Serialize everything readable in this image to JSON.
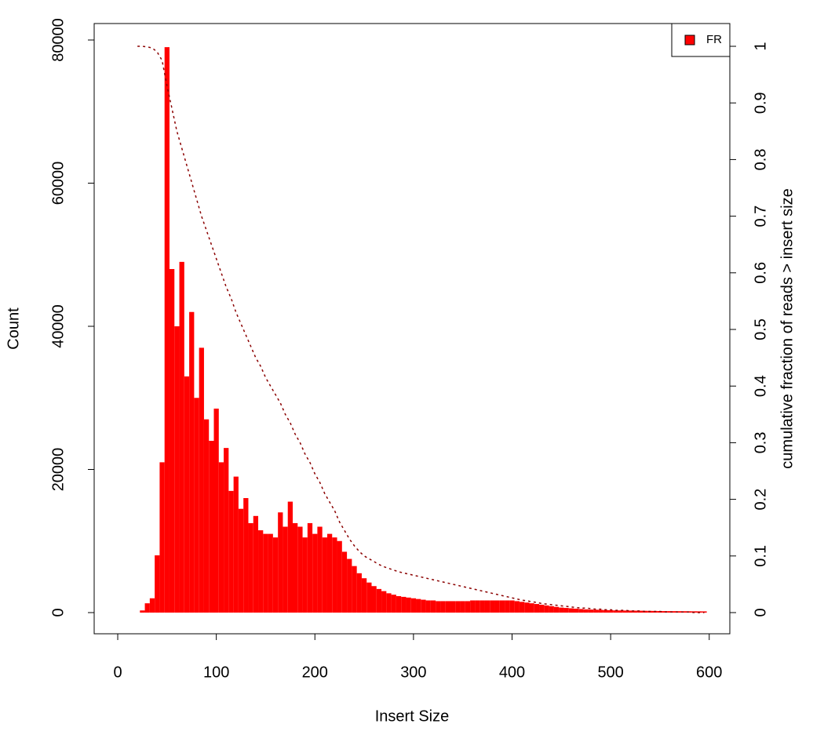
{
  "chart_data": {
    "type": "bar",
    "xlabel": "Insert Size",
    "ylabel": "Count",
    "y2label": "cumulative fraction of reads > insert size",
    "x": [
      20,
      25,
      30,
      35,
      40,
      45,
      50,
      55,
      60,
      65,
      70,
      75,
      80,
      85,
      90,
      95,
      100,
      105,
      110,
      115,
      120,
      125,
      130,
      135,
      140,
      145,
      150,
      155,
      160,
      165,
      170,
      175,
      180,
      185,
      190,
      195,
      200,
      205,
      210,
      215,
      220,
      225,
      230,
      235,
      240,
      245,
      250,
      255,
      260,
      265,
      270,
      275,
      280,
      285,
      290,
      295,
      300,
      305,
      310,
      315,
      320,
      325,
      330,
      335,
      340,
      345,
      350,
      355,
      360,
      365,
      370,
      375,
      380,
      385,
      390,
      395,
      400,
      405,
      410,
      415,
      420,
      425,
      430,
      435,
      440,
      445,
      450,
      455,
      460,
      465,
      470,
      475,
      480,
      485,
      490,
      495,
      500,
      505,
      510,
      515,
      520,
      525,
      530,
      535,
      540,
      545,
      550,
      555,
      560,
      565,
      570,
      575,
      580,
      585,
      590,
      595
    ],
    "series": [
      {
        "name": "FR",
        "color": "#ff0000",
        "values": [
          0,
          300,
          1300,
          2000,
          8000,
          21000,
          79000,
          48000,
          40000,
          49000,
          33000,
          42000,
          30000,
          37000,
          27000,
          24000,
          28500,
          21000,
          23000,
          17000,
          19000,
          14500,
          16000,
          12500,
          13500,
          11500,
          11000,
          11000,
          10500,
          14000,
          12000,
          15500,
          12500,
          12000,
          10500,
          12500,
          11000,
          12000,
          10500,
          11000,
          10500,
          10000,
          8500,
          7500,
          6500,
          5500,
          4800,
          4200,
          3700,
          3300,
          3000,
          2700,
          2500,
          2300,
          2200,
          2100,
          2000,
          1900,
          1800,
          1700,
          1700,
          1600,
          1600,
          1600,
          1600,
          1600,
          1600,
          1600,
          1700,
          1700,
          1700,
          1700,
          1700,
          1700,
          1700,
          1700,
          1700,
          1600,
          1500,
          1400,
          1300,
          1200,
          1100,
          1000,
          900,
          800,
          700,
          650,
          600,
          550,
          500,
          450,
          420,
          400,
          380,
          350,
          330,
          310,
          300,
          290,
          280,
          270,
          260,
          250,
          240,
          230,
          220,
          210,
          205,
          200,
          195,
          190,
          185,
          180,
          175,
          170
        ]
      }
    ],
    "cumulative": {
      "type": "line",
      "axis": "y2",
      "color": "#8b0000",
      "values": [
        1,
        1,
        0.999,
        0.997,
        0.99,
        0.975,
        0.93,
        0.89,
        0.85,
        0.82,
        0.79,
        0.76,
        0.73,
        0.7,
        0.675,
        0.65,
        0.625,
        0.6,
        0.575,
        0.555,
        0.53,
        0.51,
        0.49,
        0.47,
        0.45,
        0.435,
        0.415,
        0.4,
        0.385,
        0.37,
        0.35,
        0.335,
        0.315,
        0.3,
        0.28,
        0.265,
        0.245,
        0.23,
        0.21,
        0.195,
        0.18,
        0.16,
        0.145,
        0.13,
        0.118,
        0.108,
        0.1,
        0.095,
        0.09,
        0.085,
        0.081,
        0.078,
        0.075,
        0.072,
        0.07,
        0.068,
        0.066,
        0.064,
        0.062,
        0.06,
        0.058,
        0.056,
        0.054,
        0.052,
        0.05,
        0.048,
        0.046,
        0.044,
        0.042,
        0.04,
        0.038,
        0.036,
        0.034,
        0.032,
        0.03,
        0.028,
        0.026,
        0.024,
        0.022,
        0.021,
        0.019,
        0.018,
        0.016,
        0.015,
        0.014,
        0.013,
        0.012,
        0.011,
        0.01,
        0.009,
        0.008,
        0.008,
        0.007,
        0.006,
        0.006,
        0.005,
        0.005,
        0.004,
        0.004,
        0.004,
        0.003,
        0.003,
        0.003,
        0.002,
        0.002,
        0.002,
        0.002,
        0.001,
        0.001,
        0.001,
        0.001,
        0.001,
        0.001,
        0,
        0,
        0
      ]
    },
    "xlim": [
      -23.9,
      620.9
    ],
    "ylim": [
      -2959,
      82301
    ],
    "y2lim": [
      -0.0374,
      1.0402
    ],
    "xticks": [
      0,
      100,
      200,
      300,
      400,
      500,
      600
    ],
    "yticks": [
      0,
      20000,
      40000,
      60000,
      80000
    ],
    "y2ticks": [
      0,
      0.1,
      0.2,
      0.3,
      0.4,
      0.5,
      0.6,
      0.7,
      0.8,
      0.9,
      1
    ],
    "legend": "top-right"
  }
}
